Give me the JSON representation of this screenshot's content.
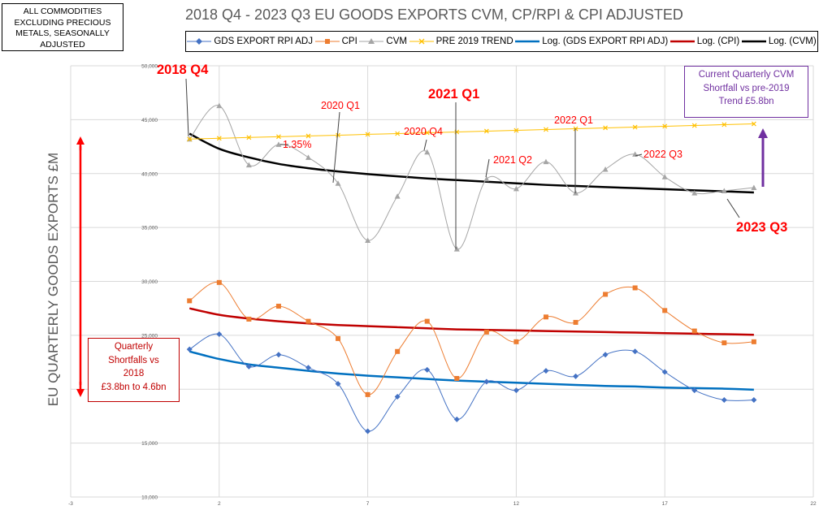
{
  "note": "ALL COMMODITIES EXCLUDING PRECIOUS METALS, SEASONALLY ADJUSTED",
  "colors": {
    "gds": "#4472c4",
    "cpi": "#ed7d31",
    "cvm": "#a5a5a5",
    "trend": "#ffc000",
    "log_gds": "#0070c0",
    "log_cpi": "#c00000",
    "log_cvm": "#000000",
    "annot_red": "#ff0000",
    "annot_purple": "#7030a0",
    "grid": "#d9d9d9"
  },
  "annotations": {
    "q2018q4": "2018 Q4",
    "q2023q3": "2023 Q3",
    "q2021q1": "2021 Q1",
    "q2020q1": "2020 Q1",
    "q2020q4": "2020 Q4",
    "q2021q2": "2021 Q2",
    "q2022q1": "2022 Q1",
    "q2022q3": "2022 Q3",
    "pct": "1.35%",
    "shortfall_lines": [
      "Quarterly",
      "Shortfalls vs",
      "2018",
      "£3.8bn to 4.6bn"
    ],
    "cvm_lines": [
      "Current Quarterly CVM",
      "Shortfall vs pre-2019",
      "Trend £5.8bn"
    ]
  },
  "chart_data": {
    "type": "scatter",
    "title": "2018 Q4 - 2023 Q3 EU GOODS EXPORTS CVM, CP/RPI & CPI ADJUSTED",
    "ylabel": "EU QUARTERLY GOODS EXPORTS £M",
    "xlabel": "",
    "xlim": [
      -3,
      22
    ],
    "ylim": [
      10000,
      50000
    ],
    "x_ticks": [
      -3,
      2,
      7,
      12,
      17,
      22
    ],
    "y_ticks": [
      10000,
      15000,
      20000,
      25000,
      30000,
      35000,
      40000,
      45000,
      50000
    ],
    "x_tick_labels": [
      "-3",
      "2",
      "7",
      "12",
      "17",
      "22"
    ],
    "y_tick_labels": [
      "10,000",
      "15,000",
      "20,000",
      "25,000",
      "30,000",
      "35,000",
      "40,000",
      "45,000",
      "50,000"
    ],
    "grid": true,
    "legend_position": "top",
    "x": [
      1,
      2,
      3,
      4,
      5,
      6,
      7,
      8,
      9,
      10,
      11,
      12,
      13,
      14,
      15,
      16,
      17,
      18,
      19,
      20
    ],
    "series": [
      {
        "name": "GDS EXPORT RPI ADJ",
        "marker": "diamond",
        "color": "#4472c4",
        "values": [
          23700,
          25100,
          22100,
          23200,
          22000,
          20500,
          16100,
          19300,
          21800,
          17200,
          20700,
          19900,
          21700,
          21200,
          23200,
          23500,
          21600,
          19900,
          19000,
          19000
        ]
      },
      {
        "name": "CPI",
        "marker": "square",
        "color": "#ed7d31",
        "values": [
          28200,
          29900,
          26500,
          27700,
          26300,
          24700,
          19500,
          23500,
          26300,
          21000,
          25300,
          24400,
          26700,
          26200,
          28800,
          29400,
          27300,
          25400,
          24300,
          24400
        ]
      },
      {
        "name": "CVM",
        "marker": "triangle",
        "color": "#a5a5a5",
        "values": [
          43200,
          46300,
          40800,
          42700,
          41500,
          39100,
          33800,
          37900,
          42000,
          33000,
          39500,
          38600,
          41100,
          38200,
          40400,
          41800,
          39700,
          38200,
          38400,
          38700
        ]
      },
      {
        "name": "PRE 2019 TREND",
        "marker": "x",
        "color": "#ffc000",
        "values": [
          43200,
          43275,
          43350,
          43420,
          43490,
          43560,
          43640,
          43710,
          43790,
          43860,
          43940,
          44010,
          44090,
          44160,
          44240,
          44310,
          44390,
          44460,
          44540,
          44610
        ]
      },
      {
        "name": "Log. (GDS EXPORT RPI ADJ)",
        "type": "log_trend",
        "color": "#0070c0",
        "values": [
          23500,
          22800,
          22300,
          22000,
          21700,
          21450,
          21250,
          21100,
          20950,
          20800,
          20700,
          20600,
          20500,
          20400,
          20300,
          20250,
          20150,
          20100,
          20050,
          19950
        ]
      },
      {
        "name": "Log. (CPI)",
        "type": "log_trend",
        "color": "#c00000",
        "values": [
          27500,
          26900,
          26550,
          26300,
          26100,
          25950,
          25850,
          25750,
          25650,
          25550,
          25500,
          25450,
          25400,
          25350,
          25300,
          25250,
          25200,
          25150,
          25100,
          25050
        ]
      },
      {
        "name": "Log. (CVM)",
        "type": "log_trend",
        "color": "#000000",
        "values": [
          43700,
          42300,
          41500,
          40900,
          40500,
          40200,
          39950,
          39750,
          39550,
          39400,
          39250,
          39100,
          38950,
          38850,
          38750,
          38650,
          38550,
          38450,
          38350,
          38250
        ]
      }
    ]
  }
}
